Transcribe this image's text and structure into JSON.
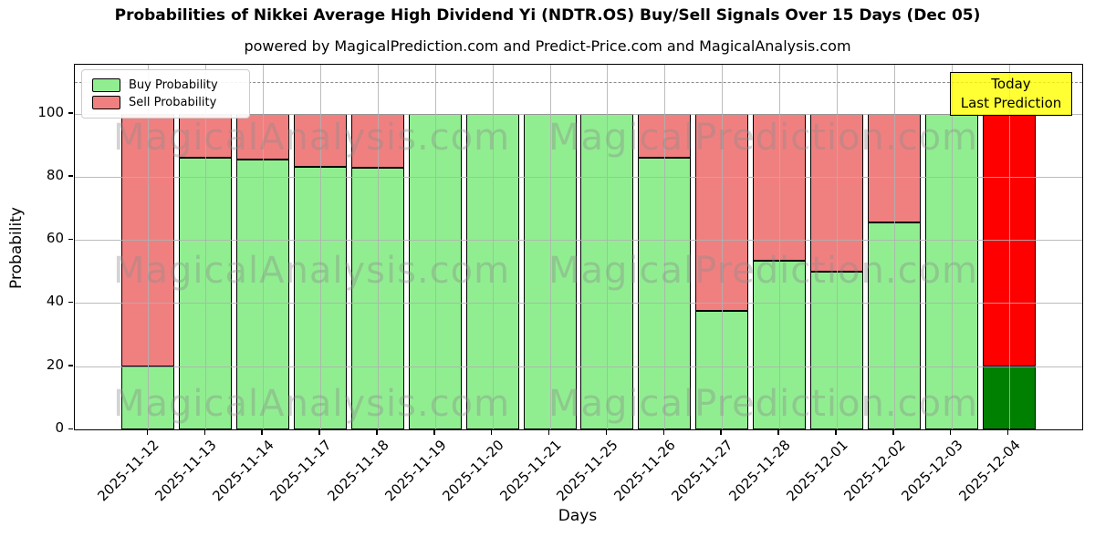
{
  "figure": {
    "title": "Probabilities of Nikkei Average High Dividend Yi (NDTR.OS) Buy/Sell Signals Over 15 Days (Dec 05)",
    "subtitle": "powered by MagicalPrediction.com and Predict-Price.com and MagicalAnalysis.com"
  },
  "chart_data": {
    "type": "bar",
    "stacked": true,
    "title": "Probabilities of Nikkei Average High Dividend Yi (NDTR.OS) Buy/Sell Signals Over 15 Days (Dec 05)",
    "subtitle": "powered by MagicalPrediction.com and Predict-Price.com and MagicalAnalysis.com",
    "xlabel": "Days",
    "ylabel": "Probability",
    "categories": [
      "2025-11-12",
      "2025-11-13",
      "2025-11-14",
      "2025-11-17",
      "2025-11-18",
      "2025-11-19",
      "2025-11-20",
      "2025-11-21",
      "2025-11-25",
      "2025-11-26",
      "2025-11-27",
      "2025-11-28",
      "2025-12-01",
      "2025-12-02",
      "2025-12-03",
      "2025-12-04"
    ],
    "series": [
      {
        "name": "Buy Probability",
        "color": "#90EE90",
        "values": [
          20,
          86,
          85.5,
          83.3,
          82.9,
          100,
          100,
          100,
          100,
          86,
          37.5,
          53.5,
          50,
          65.5,
          100,
          20
        ]
      },
      {
        "name": "Sell Probability",
        "color": "#F08080",
        "values": [
          80,
          14,
          14.5,
          16.7,
          17.1,
          0,
          0,
          0,
          0,
          14,
          62.5,
          46.5,
          50,
          34.5,
          0,
          80
        ]
      }
    ],
    "today_bar": {
      "index": 15,
      "buy_color": "#008000",
      "sell_color": "#FF0000"
    },
    "yticks": [
      0,
      20,
      40,
      60,
      80,
      100
    ],
    "ylim": [
      0,
      115.5
    ],
    "dashed_line_y": 110,
    "grid": true,
    "legend_position": "upper left"
  },
  "legend": {
    "items": [
      {
        "label": "Buy Probability",
        "color": "#90EE90"
      },
      {
        "label": "Sell Probability",
        "color": "#F08080"
      }
    ]
  },
  "annotation": {
    "line1": "Today",
    "line2": "Last Prediction",
    "bg": "#FFFF00"
  },
  "watermarks": {
    "left": "MagicalAnalysis.com",
    "right": "MagicalPrediction.com"
  }
}
